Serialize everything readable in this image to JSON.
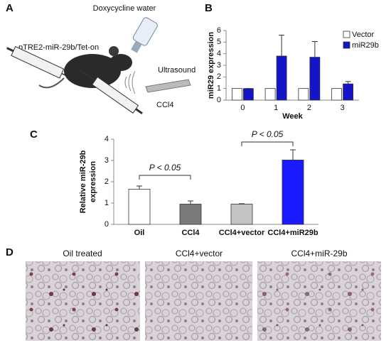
{
  "panel_labels": [
    "A",
    "B",
    "C",
    "D"
  ],
  "diagram": {
    "water": "Doxycycline water",
    "vector": "pTRE2-miR-29b/Tet-on",
    "ultrasound": "Ultrasound",
    "drug": "CCl4"
  },
  "chart_data": [
    {
      "type": "bar",
      "y_label": "miR29 expression",
      "x_label": "Week",
      "categories": [
        "0",
        "1",
        "2",
        "3"
      ],
      "series": [
        {
          "name": "Vector",
          "color": "#ffffff",
          "values": [
            1,
            1,
            1,
            1
          ]
        },
        {
          "name": "miR29b",
          "color": "#1414c8",
          "values": [
            1,
            3.8,
            3.7,
            1.4
          ],
          "errors": [
            0,
            1.8,
            1.35,
            0.2
          ]
        }
      ],
      "ylim": [
        0,
        6
      ],
      "yticks": [
        0,
        1,
        2,
        3,
        4,
        5,
        6
      ],
      "legend": "upper right"
    },
    {
      "type": "bar",
      "y_label": [
        "Relative miR-29b",
        "expression"
      ],
      "categories": [
        "Oil",
        "CCl4",
        "CCl4+vector",
        "CCl4+miR29b"
      ],
      "values": [
        1.65,
        0.95,
        0.95,
        3.02
      ],
      "errors": [
        0.15,
        0.15,
        0.02,
        0.48
      ],
      "colors": [
        "#ffffff",
        "#7a7a7a",
        "#c4c4c4",
        "#1a1aff"
      ],
      "ylim": [
        0,
        4
      ],
      "yticks": [
        0,
        1,
        2,
        3,
        4
      ],
      "annotations": [
        "P < 0.05",
        "P < 0.05"
      ]
    }
  ],
  "micrographs": [
    "Oil treated",
    "CCl4+vector",
    "CCl4+miR-29b"
  ]
}
